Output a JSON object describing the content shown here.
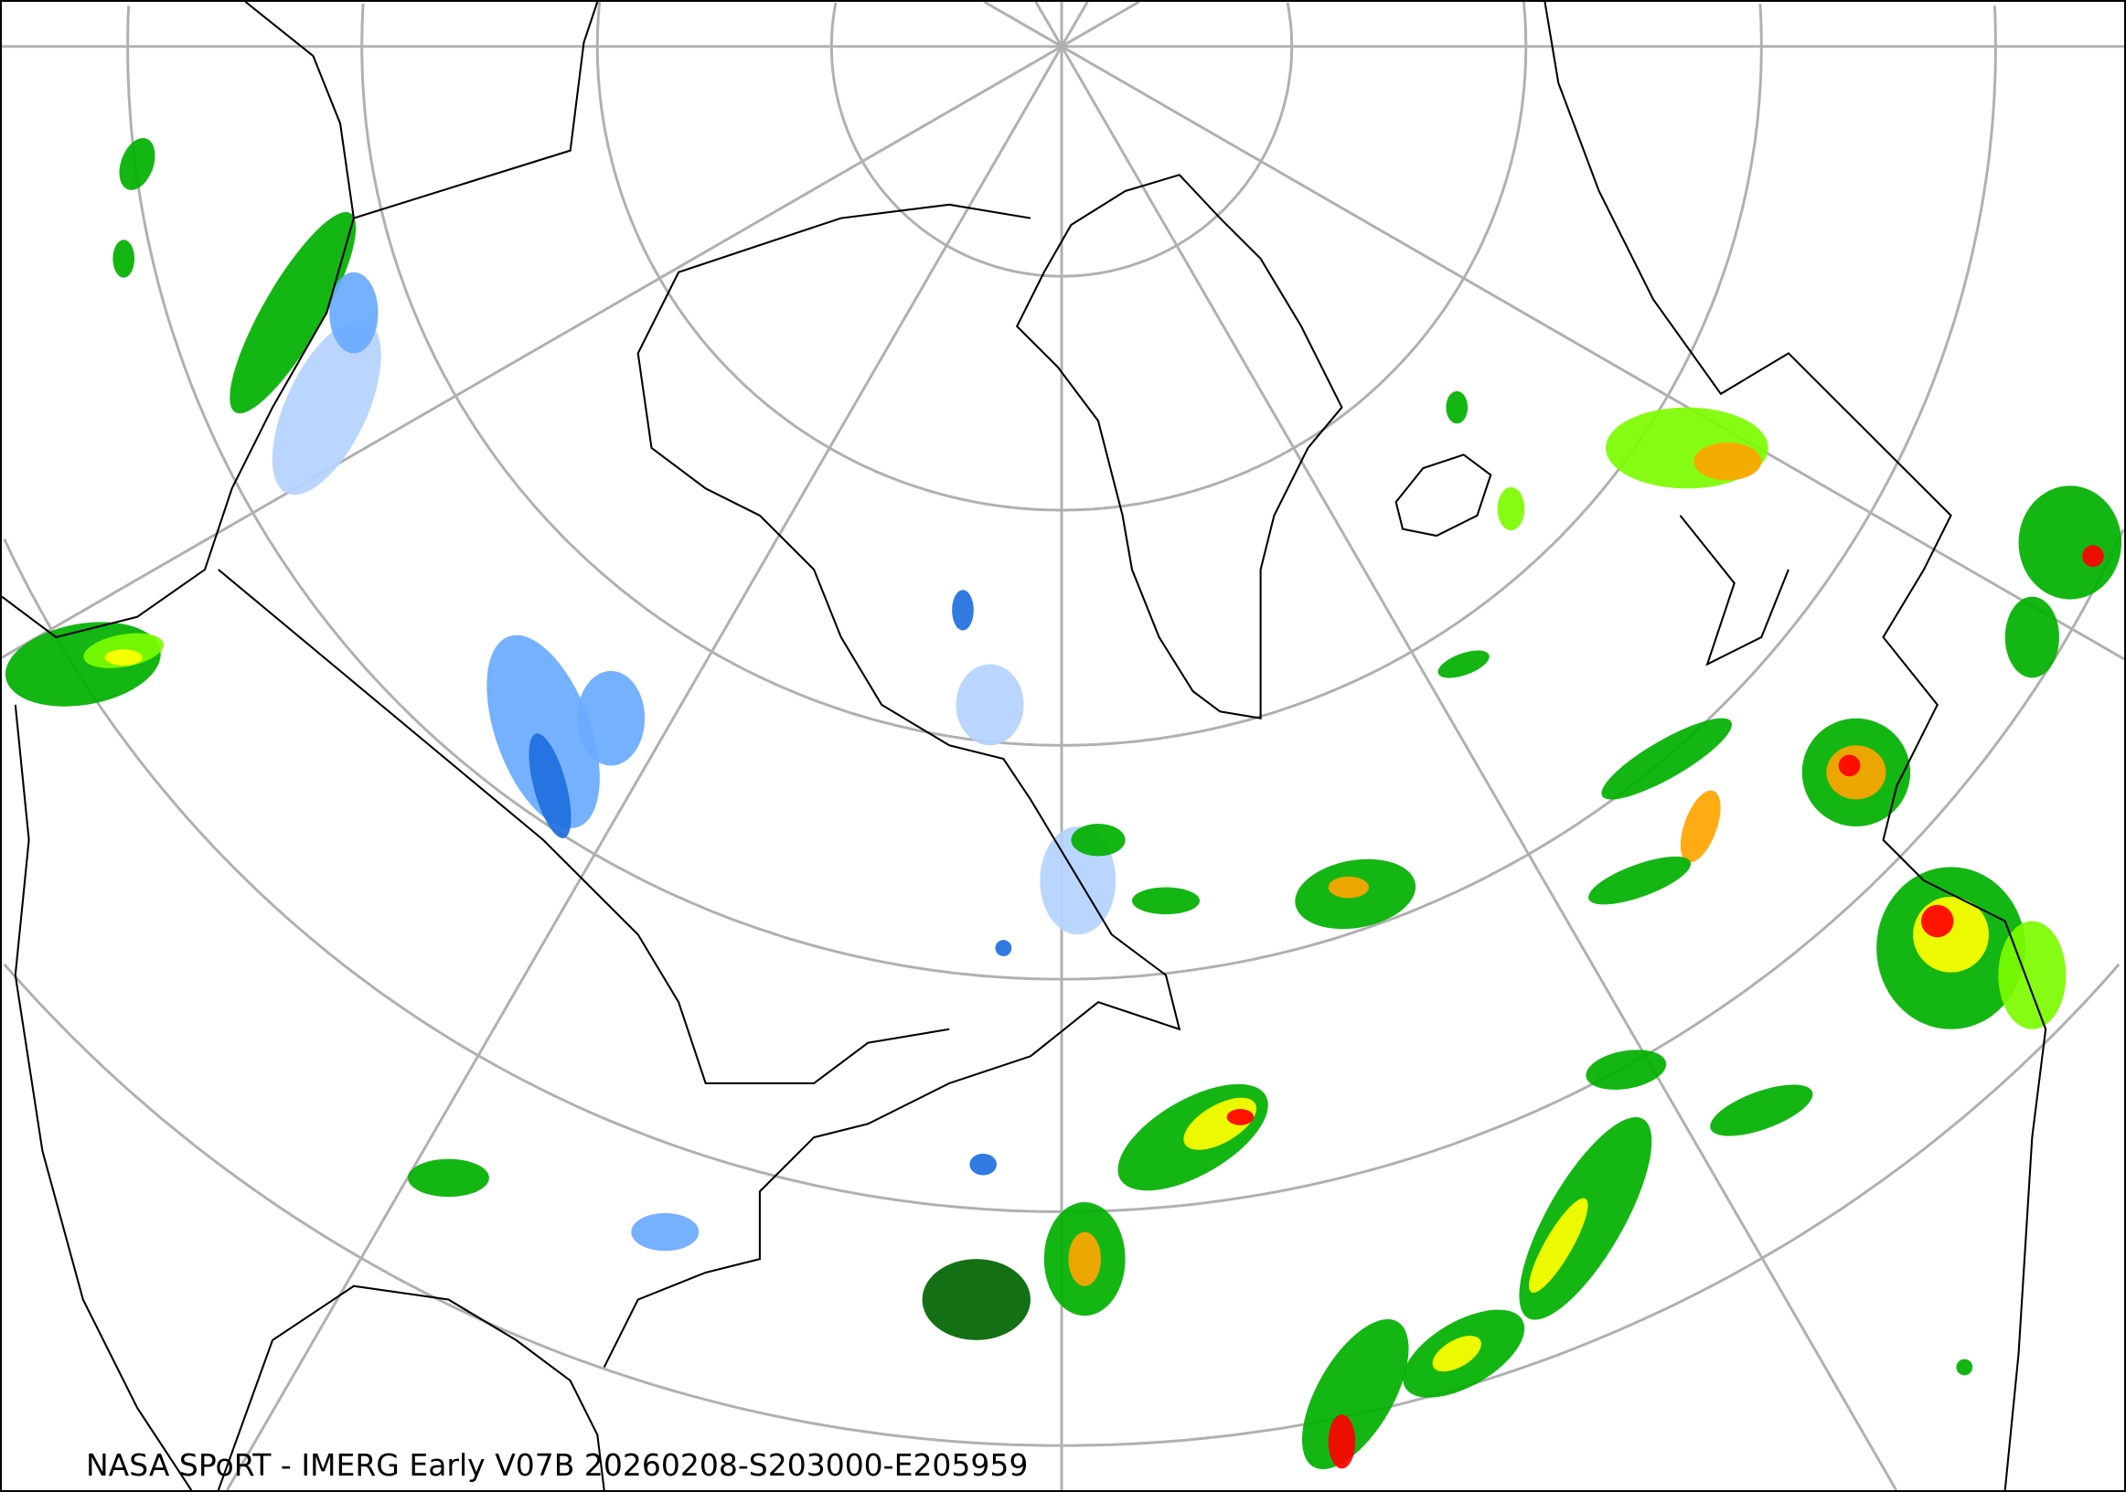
{
  "map": {
    "caption": "NASA SPoRT - IMERG Early V07B 20260208-S203000-E205959",
    "projection": "north-polar-stereographic",
    "graticule_color": "#b0b0b0",
    "coastline_color": "#000000",
    "background_color": "#ffffff",
    "precip_colors": {
      "very_light": "#b4d2ff",
      "light_blue": "#6aaaff",
      "blue": "#1e6fe0",
      "dark_green": "#006400",
      "green": "#00b000",
      "light_green": "#7cfc00",
      "yellow": "#ffff00",
      "orange": "#ffa500",
      "red": "#ff0000"
    }
  }
}
